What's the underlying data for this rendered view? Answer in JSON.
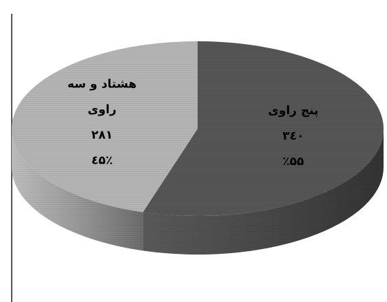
{
  "chart_data": {
    "type": "pie",
    "title": "",
    "categories": [
      "پنج راوی",
      "هشتاد و سه راوی"
    ],
    "slices": [
      {
        "name": "پنج راوی",
        "value": 340,
        "value_label": "۳٤۰",
        "percent": 55,
        "percent_label": "٪۵۵",
        "color": "#555555",
        "label_lines": [
          "پنج راوی"
        ]
      },
      {
        "name": "هشتاد و سه راوی",
        "value": 281,
        "value_label": "۲۸۱",
        "percent": 45,
        "percent_label": "٪٤۵",
        "color": "#b4b4b4",
        "label_lines": [
          "هشتاد و سه",
          "راوی"
        ]
      }
    ],
    "three_d": true,
    "legend": "none"
  }
}
